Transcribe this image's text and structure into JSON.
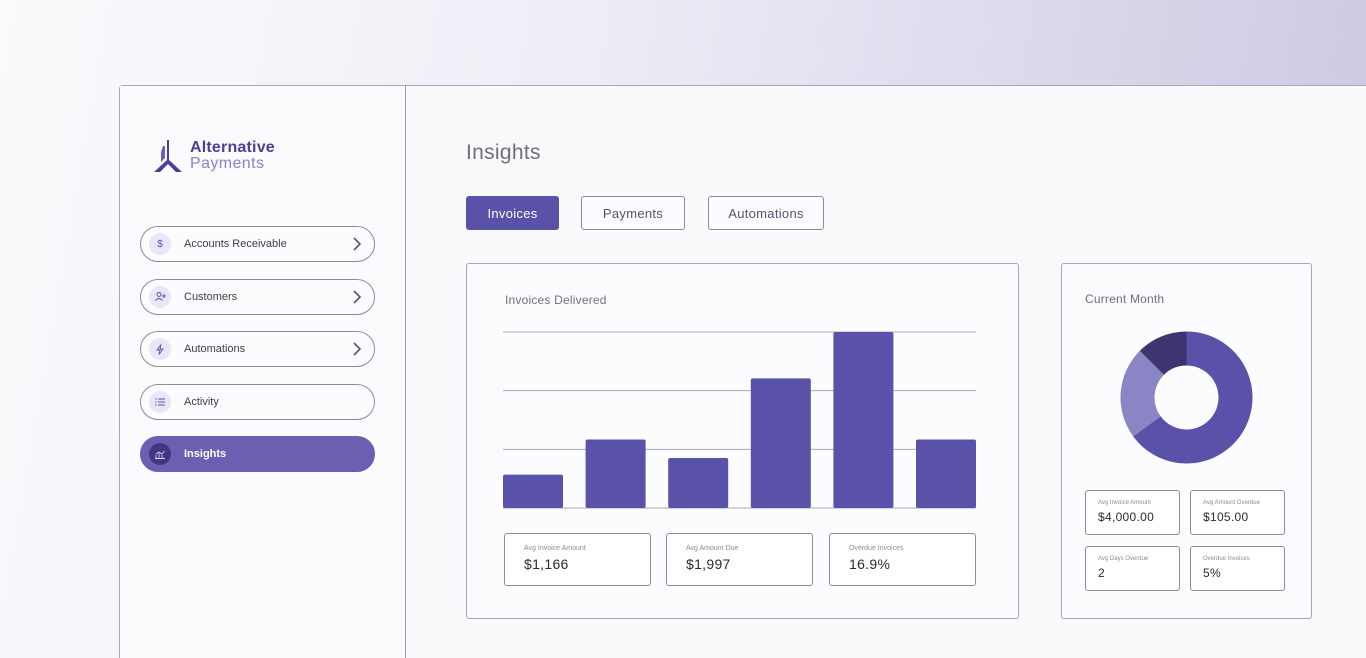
{
  "brand": {
    "line1": "Alternative",
    "line2": "Payments"
  },
  "sidebar": {
    "items": [
      {
        "label": "Accounts Receivable",
        "icon": "dollar-icon",
        "glyph": "$",
        "chevron": true,
        "active": false
      },
      {
        "label": "Customers",
        "icon": "add-user-icon",
        "glyph": "👤",
        "chevron": true,
        "active": false
      },
      {
        "label": "Automations",
        "icon": "lightning-icon",
        "glyph": "⚡",
        "chevron": true,
        "active": false
      },
      {
        "label": "Activity",
        "icon": "list-icon",
        "glyph": "☰",
        "chevron": false,
        "active": false
      },
      {
        "label": "Insights",
        "icon": "chart-icon",
        "glyph": "📊",
        "chevron": false,
        "active": true
      }
    ]
  },
  "main": {
    "title": "Insights",
    "tabs": [
      {
        "label": "Invoices",
        "active": true
      },
      {
        "label": "Payments",
        "active": false
      },
      {
        "label": "Automations",
        "active": false
      }
    ]
  },
  "invoices_card": {
    "title": "Invoices Delivered",
    "stats": [
      {
        "label": "Avg Invoice Amount",
        "value": "$1,166"
      },
      {
        "label": "Avg Amount Due",
        "value": "$1,997"
      },
      {
        "label": "Overdue Invoices",
        "value": "16.9%"
      }
    ]
  },
  "month_card": {
    "title": "Current Month",
    "stats": [
      {
        "label": "Avg Invoice Amount",
        "value": "$4,000.00"
      },
      {
        "label": "Avg Amount Overdue",
        "value": "$105.00"
      },
      {
        "label": "Avg Days Overdue",
        "value": "2"
      },
      {
        "label": "Overdue Invoices",
        "value": "5%"
      }
    ]
  },
  "colors": {
    "primary": "#5a52a8",
    "donut_light": "#8a85c4",
    "donut_dark": "#3f3470"
  },
  "chart_data": [
    {
      "type": "bar",
      "title": "Invoices Delivered",
      "categories": [
        "",
        "",
        "",
        "",
        "",
        ""
      ],
      "values": [
        18,
        37,
        27,
        70,
        95,
        37
      ],
      "ylim": [
        0,
        95
      ],
      "grid": true,
      "legend": "none"
    },
    {
      "type": "pie",
      "title": "Current Month",
      "donut": true,
      "slices": [
        {
          "value": 65,
          "color": "#5a52a8"
        },
        {
          "value": 22.5,
          "color": "#8a85c4"
        },
        {
          "value": 12.5,
          "color": "#3f3470"
        }
      ]
    }
  ]
}
